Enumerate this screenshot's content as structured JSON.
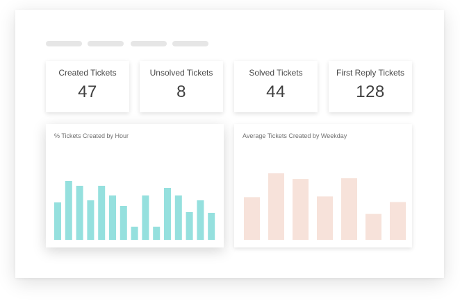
{
  "stats": [
    {
      "label": "Created Tickets",
      "value": "47"
    },
    {
      "label": "Unsolved Tickets",
      "value": "8"
    },
    {
      "label": "Solved Tickets",
      "value": "44"
    },
    {
      "label": "First Reply Tickets",
      "value": "128"
    }
  ],
  "colors": {
    "hour_bar": "#95e0de",
    "weekday_bar": "#f7e2da",
    "placeholder": "#e6e6e6"
  },
  "chart_data": [
    {
      "type": "bar",
      "title": "% Tickets Created by Hour",
      "values": [
        54,
        85,
        78,
        57,
        78,
        64,
        49,
        19,
        64,
        19,
        75,
        64,
        40,
        57,
        39
      ],
      "ylim": [
        0,
        100
      ],
      "grid": false
    },
    {
      "type": "bar",
      "title": "Average Tickets Created by Weekday",
      "values": [
        61,
        95,
        87,
        62,
        88,
        37,
        54
      ],
      "ylim": [
        0,
        100
      ],
      "grid": false
    }
  ]
}
